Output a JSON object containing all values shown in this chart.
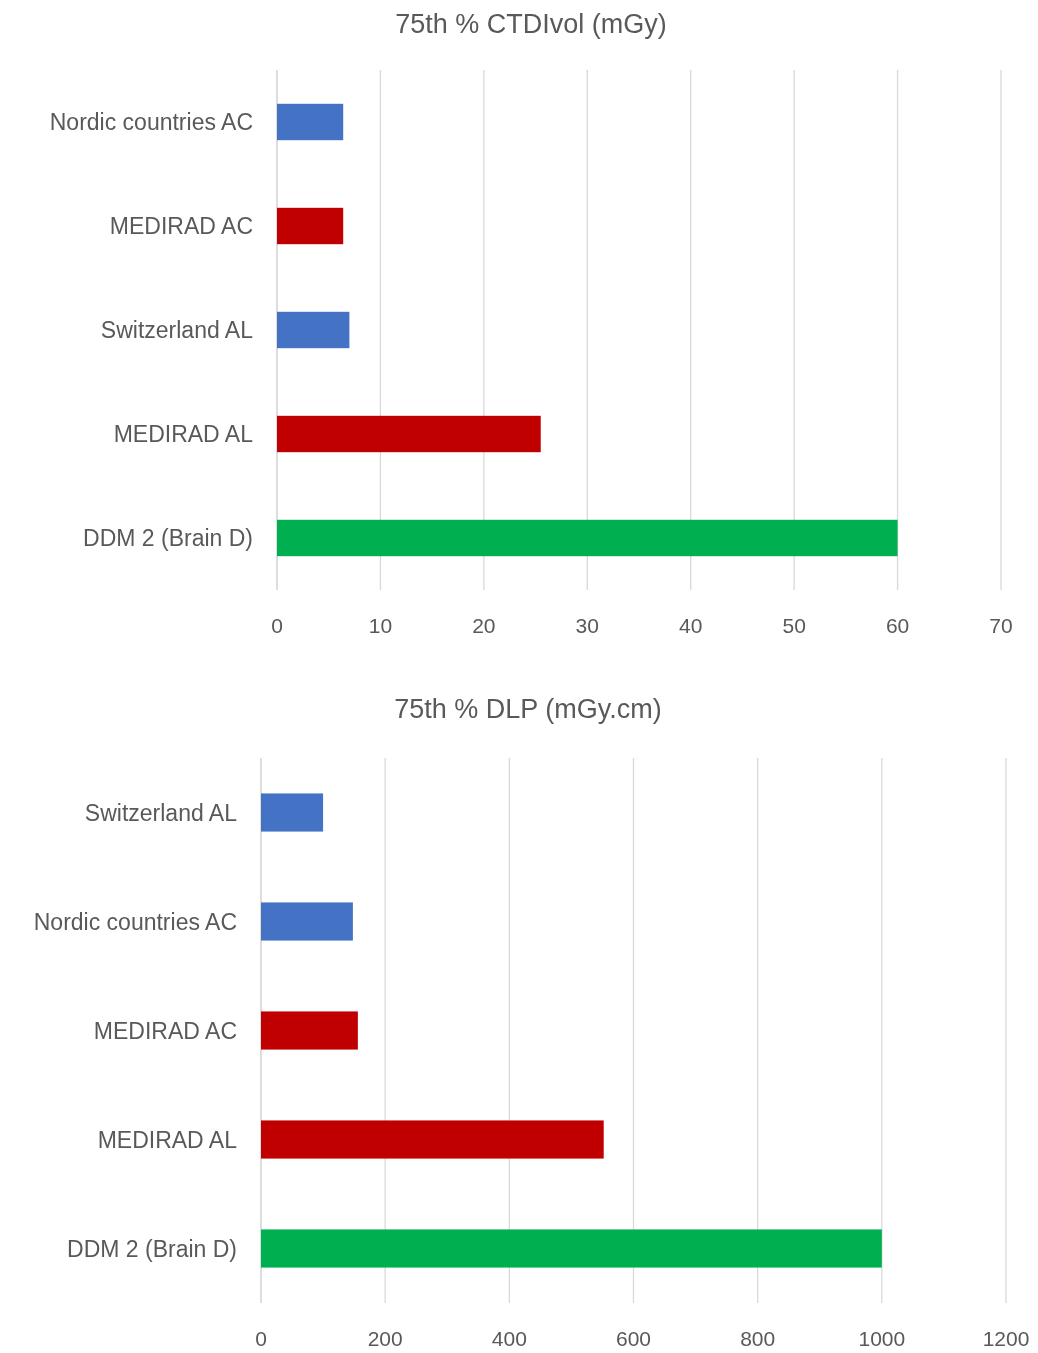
{
  "chart_data": [
    {
      "type": "bar",
      "orientation": "horizontal",
      "title": "75th % CTDIvol (mGy)",
      "categories": [
        "Nordic countries AC",
        "MEDIRAD AC",
        "Switzerland AL",
        "MEDIRAD AL",
        "DDM 2 (Brain D)"
      ],
      "values": [
        6.4,
        6.4,
        7,
        25.5,
        60
      ],
      "colors": [
        "#4472c4",
        "#c00000",
        "#4472c4",
        "#c00000",
        "#00b050"
      ],
      "xlim": [
        0,
        70
      ],
      "xticks": [
        0,
        10,
        20,
        30,
        40,
        50,
        60,
        70
      ],
      "grid": "x"
    },
    {
      "type": "bar",
      "orientation": "horizontal",
      "title": "75th % DLP (mGy.cm)",
      "categories": [
        "Switzerland AL",
        "Nordic countries AC",
        "MEDIRAD AC",
        "MEDIRAD AL",
        "DDM 2 (Brain D)"
      ],
      "values": [
        100,
        148,
        156,
        552,
        1000
      ],
      "colors": [
        "#4472c4",
        "#4472c4",
        "#c00000",
        "#c00000",
        "#00b050"
      ],
      "xlim": [
        0,
        1200
      ],
      "xticks": [
        0,
        200,
        400,
        600,
        800,
        1000,
        1200
      ],
      "grid": "x"
    }
  ]
}
